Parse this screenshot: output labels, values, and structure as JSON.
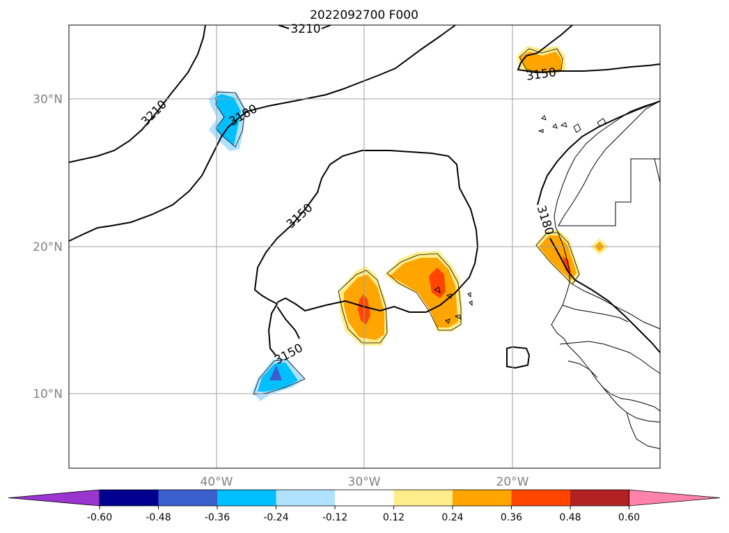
{
  "title": "2022092700 F000",
  "lat_labels": [
    "30°N",
    "20°N",
    "10°N"
  ],
  "lon_labels": [
    "40°W",
    "30°W",
    "20°W"
  ],
  "contour_labels": [
    "3210",
    "3210",
    "3180",
    "3150",
    "3150",
    "3150",
    "3180"
  ],
  "colorbar": {
    "tick_labels": [
      "-0.60",
      "-0.48",
      "-0.36",
      "-0.24",
      "-0.12",
      "0.12",
      "0.24",
      "0.36",
      "0.48",
      "0.60"
    ],
    "colors": [
      "#9a35d0",
      "#000090",
      "#3a5fcd",
      "#00bfff",
      "#b0e2ff",
      "#ffffff",
      "#ffec8b",
      "#ffa500",
      "#ff4500",
      "#b22222",
      "#ff82ab"
    ]
  }
}
